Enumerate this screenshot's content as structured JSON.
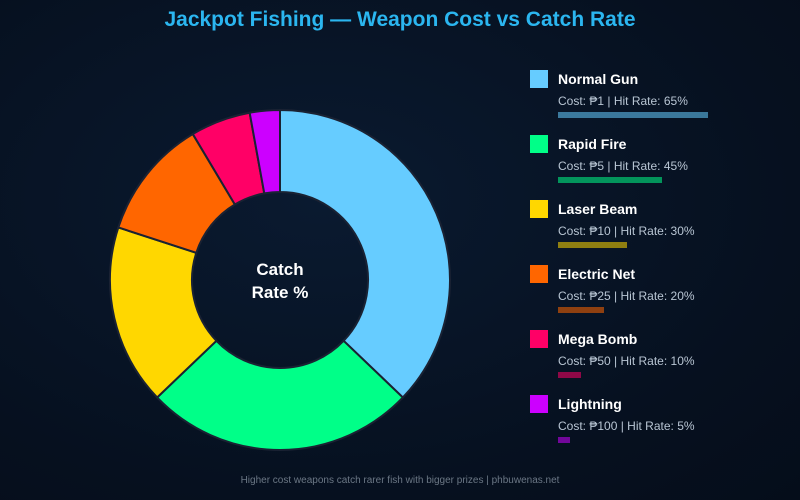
{
  "title": "Jackpot Fishing — Weapon Cost vs Catch Rate",
  "center_label": [
    "Catch",
    "Rate %"
  ],
  "footer": "Higher cost weapons catch rarer fish with bigger prizes | phbuwenas.net",
  "legend": {
    "cost_prefix": "Cost: ",
    "separator": " | ",
    "hit_prefix": "Hit Rate: "
  },
  "chart_data": {
    "type": "pie",
    "donut": true,
    "title": "Jackpot Fishing — Weapon Cost vs Catch Rate",
    "legend_position": "right",
    "categories": [
      "Normal Gun",
      "Rapid Fire",
      "Laser Beam",
      "Electric Net",
      "Mega Bomb",
      "Lightning"
    ],
    "series": [
      {
        "values": [
          65,
          45,
          30,
          20,
          10,
          5
        ]
      }
    ],
    "items": [
      {
        "name": "Normal Gun",
        "cost": "₱1",
        "hit_rate": "65%",
        "rate": 65,
        "color": "#66ccff"
      },
      {
        "name": "Rapid Fire",
        "cost": "₱5",
        "hit_rate": "45%",
        "rate": 45,
        "color": "#00ff88"
      },
      {
        "name": "Laser Beam",
        "cost": "₱10",
        "hit_rate": "30%",
        "rate": 30,
        "color": "#ffd700"
      },
      {
        "name": "Electric Net",
        "cost": "₱25",
        "hit_rate": "20%",
        "rate": 20,
        "color": "#ff6600"
      },
      {
        "name": "Mega Bomb",
        "cost": "₱50",
        "hit_rate": "10%",
        "rate": 10,
        "color": "#ff0066"
      },
      {
        "name": "Lightning",
        "cost": "₱100",
        "hit_rate": "5%",
        "rate": 5,
        "color": "#cc00ff"
      }
    ]
  }
}
